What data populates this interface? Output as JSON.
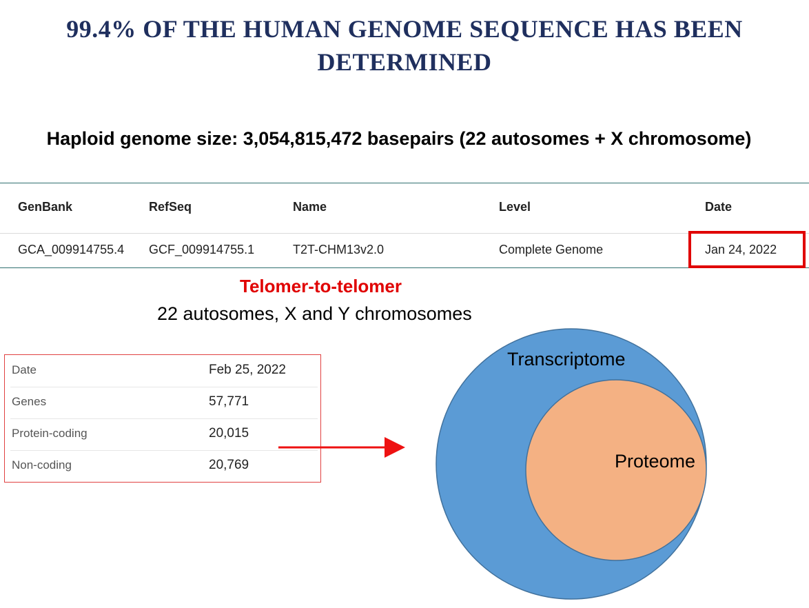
{
  "title": {
    "line1": "99.4% OF THE HUMAN GENOME SEQUENCE HAS BEEN",
    "line2": "DETERMINED"
  },
  "subtitle": "Haploid genome size: 3,054,815,472 basepairs (22 autosomes + X chromosome)",
  "assembly_table": {
    "headers": {
      "genbank": "GenBank",
      "refseq": "RefSeq",
      "name": "Name",
      "level": "Level",
      "date": "Date"
    },
    "row": {
      "genbank": "GCA_009914755.4",
      "refseq": "GCF_009914755.1",
      "name": "T2T-CHM13v2.0",
      "level": "Complete Genome",
      "date": "Jan 24, 2022"
    }
  },
  "t2t": {
    "heading": "Telomer-to-telomer",
    "description": "22 autosomes, X and Y chromosomes"
  },
  "stats_table": [
    {
      "label": "Date",
      "value": "Feb 25, 2022"
    },
    {
      "label": "Genes",
      "value": "57,771"
    },
    {
      "label": "Protein-coding",
      "value": "20,015"
    },
    {
      "label": "Non-coding",
      "value": "20,769"
    }
  ],
  "venn": {
    "outer_label": "Transcriptome",
    "inner_label": "Proteome",
    "outer_color": "#5b9bd5",
    "inner_color": "#f4b183"
  },
  "colors": {
    "title": "#1f2f5e",
    "highlight": "#e00000"
  }
}
